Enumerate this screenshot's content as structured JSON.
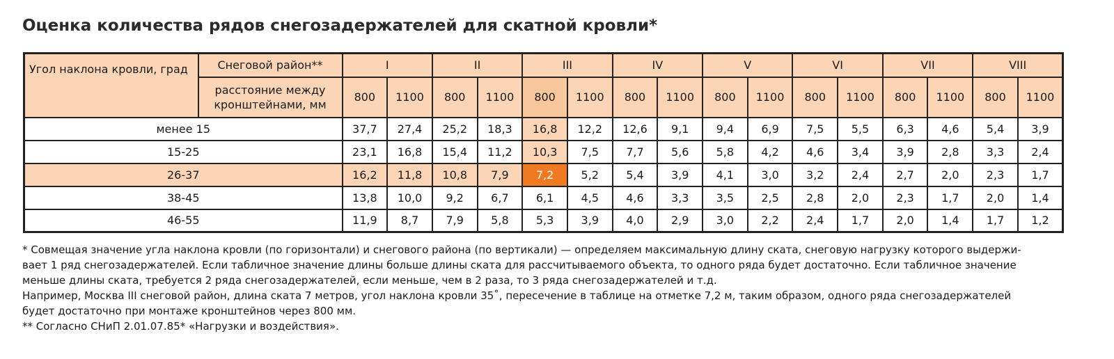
{
  "title": "Оценка количества рядов снегозадержателей для скатной кровли*",
  "table": {
    "angle_header": "Угол наклона кровли, град",
    "region_header": "Снеговой район**",
    "distance_header": "расстояние между кронштейнами, мм",
    "regions": [
      "I",
      "II",
      "III",
      "IV",
      "V",
      "VI",
      "VII",
      "VIII"
    ],
    "distances": [
      "800",
      "1100",
      "800",
      "1100",
      "800",
      "1100",
      "800",
      "1100",
      "800",
      "1100",
      "800",
      "1100",
      "800",
      "1100",
      "800",
      "1100"
    ],
    "rows": [
      {
        "label": "менее 15",
        "values": [
          "37,7",
          "27,4",
          "25,2",
          "18,3",
          "16,8",
          "12,2",
          "12,6",
          "9,1",
          "9,4",
          "6,9",
          "7,5",
          "5,5",
          "6,3",
          "4,6",
          "5,4",
          "3,9"
        ]
      },
      {
        "label": "15-25",
        "values": [
          "23,1",
          "16,8",
          "15,4",
          "11,2",
          "10,3",
          "7,5",
          "7,7",
          "5,6",
          "5,8",
          "4,2",
          "4,6",
          "3,4",
          "3,9",
          "2,8",
          "3,3",
          "2,4"
        ]
      },
      {
        "label": "26-37",
        "values": [
          "16,2",
          "11,8",
          "10,8",
          "7,9",
          "7,2",
          "5,2",
          "5,4",
          "3,9",
          "4,1",
          "3,0",
          "3,2",
          "2,4",
          "2,7",
          "2,0",
          "2,3",
          "1,7"
        ]
      },
      {
        "label": "38-45",
        "values": [
          "13,8",
          "10,0",
          "9,2",
          "6,7",
          "6,1",
          "4,5",
          "4,6",
          "3,3",
          "3,5",
          "2,5",
          "2,8",
          "2,0",
          "2,3",
          "1,7",
          "2,0",
          "1,4"
        ]
      },
      {
        "label": "46-55",
        "values": [
          "11,9",
          "8,7",
          "7,9",
          "5,8",
          "5,3",
          "3,9",
          "4,0",
          "2,9",
          "3,0",
          "2,2",
          "2,4",
          "1,7",
          "2,0",
          "1,4",
          "1,7",
          "1,2"
        ]
      }
    ]
  },
  "notes": [
    "* Совмещая значение угла наклона кровли (по горизонтали) и снегового района (по вертикали) — определяем максимальную длину ската, снеговую нагрузку которого выдержи-",
    "вает 1 ряд снегозадержателей. Если табличное значение длины больше длины ската для рассчитываемого объекта, то одного ряда будет достаточно. Если табличное значение",
    "меньше длины ската, требуется 2 ряда снегозадержателей, если меньше, чем в 2 раза, то 3 ряда снегозадержателей и т.д.",
    "Например, Москва III снеговой район, длина ската 7 метров, угол наклона кровли 35˚, пересечение в таблице на отметке 7,2 м, таким образом, одного ряда снегозадержателей",
    "будет достаточно при монтаже кронштейнов через 800 мм.",
    "** Согласно СНиП 2.01.07.85* «Нагрузки и воздействия»."
  ]
}
